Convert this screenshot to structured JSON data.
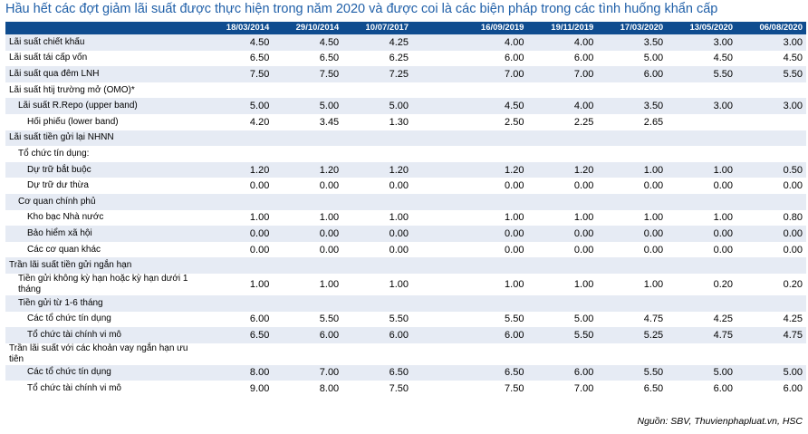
{
  "title": "Hầu hết các đợt giảm lãi suất được thực hiện trong năm 2020 và được coi là các biện pháp trong các tình huống khẩn cấp",
  "columns": [
    "18/03/2014",
    "29/10/2014",
    "10/07/2017",
    "16/09/2019",
    "19/11/2019",
    "17/03/2020",
    "13/05/2020",
    "06/08/2020"
  ],
  "rows": [
    {
      "label": "Lãi suất chiết khấu",
      "values": [
        "4.50",
        "4.50",
        "4.25",
        "4.00",
        "4.00",
        "3.50",
        "3.00",
        "3.00"
      ]
    },
    {
      "label": "Lãi suất tái cấp vốn",
      "values": [
        "6.50",
        "6.50",
        "6.25",
        "6.00",
        "6.00",
        "5.00",
        "4.50",
        "4.50"
      ]
    },
    {
      "label": "Lãi suất qua đêm LNH",
      "values": [
        "7.50",
        "7.50",
        "7.25",
        "7.00",
        "7.00",
        "6.00",
        "5.50",
        "5.50"
      ]
    },
    {
      "label": "Lãi suất htij trường mở (OMO)*",
      "values": [
        "",
        "",
        "",
        "",
        "",
        "",
        "",
        ""
      ]
    },
    {
      "label": "Lãi suất R.Repo (upper band)",
      "values": [
        "5.00",
        "5.00",
        "5.00",
        "4.50",
        "4.00",
        "3.50",
        "3.00",
        "3.00"
      ]
    },
    {
      "label": "Hối phiếu (lower band)",
      "values": [
        "4.20",
        "3.45",
        "1.30",
        "2.50",
        "2.25",
        "2.65",
        "",
        ""
      ]
    },
    {
      "label": "Lãi suất tiền gửi lại NHNN",
      "values": [
        "",
        "",
        "",
        "",
        "",
        "",
        "",
        ""
      ]
    },
    {
      "label": "Tổ chức tín dụng:",
      "values": [
        "",
        "",
        "",
        "",
        "",
        "",
        "",
        ""
      ]
    },
    {
      "label": "Dự trữ bắt buộc",
      "values": [
        "1.20",
        "1.20",
        "1.20",
        "1.20",
        "1.20",
        "1.00",
        "1.00",
        "0.50"
      ]
    },
    {
      "label": "Dự trữ dư thừa",
      "values": [
        "0.00",
        "0.00",
        "0.00",
        "0.00",
        "0.00",
        "0.00",
        "0.00",
        "0.00"
      ]
    },
    {
      "label": "Cơ quan chính phủ",
      "values": [
        "",
        "",
        "",
        "",
        "",
        "",
        "",
        ""
      ]
    },
    {
      "label": "Kho bạc Nhà nước",
      "values": [
        "1.00",
        "1.00",
        "1.00",
        "1.00",
        "1.00",
        "1.00",
        "1.00",
        "0.80"
      ]
    },
    {
      "label": "Bảo hiểm xã hội",
      "values": [
        "0.00",
        "0.00",
        "0.00",
        "0.00",
        "0.00",
        "0.00",
        "0.00",
        "0.00"
      ]
    },
    {
      "label": "Các cơ quan khác",
      "values": [
        "0.00",
        "0.00",
        "0.00",
        "0.00",
        "0.00",
        "0.00",
        "0.00",
        "0.00"
      ]
    },
    {
      "label": "Trần lãi suất tiền gửi ngắn hạn",
      "values": [
        "",
        "",
        "",
        "",
        "",
        "",
        "",
        ""
      ]
    },
    {
      "label": "Tiền gửi không kỳ hạn hoặc kỳ hạn dưới 1 tháng",
      "values": [
        "1.00",
        "1.00",
        "1.00",
        "1.00",
        "1.00",
        "1.00",
        "0.20",
        "0.20"
      ]
    },
    {
      "label": "Tiền gửi từ 1-6 tháng",
      "values": [
        "",
        "",
        "",
        "",
        "",
        "",
        "",
        ""
      ]
    },
    {
      "label": "Các tổ chức tín dụng",
      "values": [
        "6.00",
        "5.50",
        "5.50",
        "5.50",
        "5.00",
        "4.75",
        "4.25",
        "4.25"
      ]
    },
    {
      "label": "Tổ chức tài chính vi mô",
      "values": [
        "6.50",
        "6.00",
        "6.00",
        "6.00",
        "5.50",
        "5.25",
        "4.75",
        "4.75"
      ]
    },
    {
      "label": "Trần lãi suất với các khoản vay ngắn hạn ưu tiên",
      "values": [
        "",
        "",
        "",
        "",
        "",
        "",
        "",
        ""
      ]
    },
    {
      "label": "Các tổ chức tín dụng",
      "values": [
        "8.00",
        "7.00",
        "6.50",
        "6.50",
        "6.00",
        "5.50",
        "5.00",
        "5.00"
      ]
    },
    {
      "label": "Tổ chức tài chính vi mô",
      "values": [
        "9.00",
        "8.00",
        "7.50",
        "7.50",
        "7.00",
        "6.50",
        "6.00",
        "6.00"
      ]
    }
  ],
  "source": "Nguồn: SBV, Thuvienphapluat.vn, HSC"
}
